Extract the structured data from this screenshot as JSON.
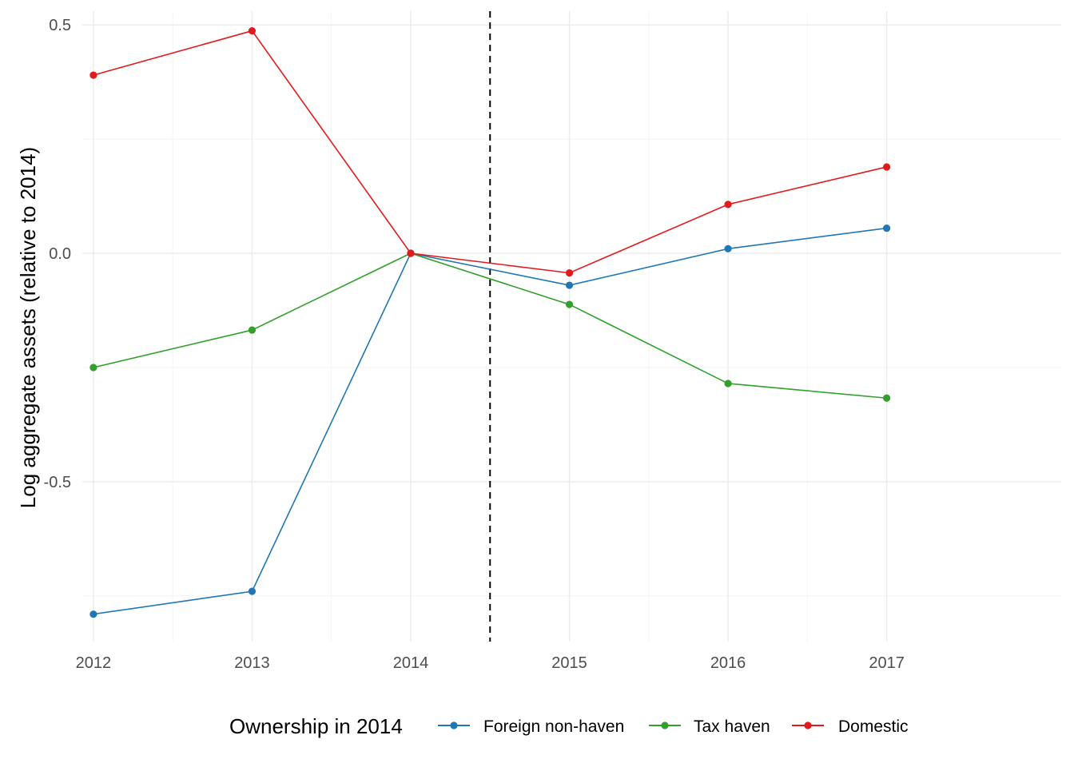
{
  "chart_data": {
    "type": "line",
    "title": "",
    "xlabel": "",
    "ylabel": "Log aggregate assets (relative to 2014)",
    "x": [
      2012,
      2013,
      2014,
      2015,
      2016,
      2017
    ],
    "x_tick_labels": [
      "2012",
      "2013",
      "2014",
      "2015",
      "2016",
      "2017"
    ],
    "xlim": [
      2011.93,
      2018.1
    ],
    "ylim": [
      -0.85,
      0.53
    ],
    "y_ticks": [
      0.5,
      0.0,
      -0.5
    ],
    "y_tick_labels": [
      "0.5",
      "0.0",
      "-0.5"
    ],
    "grid": true,
    "reference_line": {
      "x": 2014.5,
      "style": "dashed",
      "color": "#000000"
    },
    "legend": {
      "title": "Ownership in 2014",
      "position": "bottom"
    },
    "series": [
      {
        "name": "Foreign non-haven",
        "color": "#1f78b4",
        "values": [
          -0.79,
          -0.74,
          0.0,
          -0.07,
          0.01,
          0.055
        ]
      },
      {
        "name": "Tax haven",
        "color": "#33a02c",
        "values": [
          -0.25,
          -0.168,
          0.0,
          -0.112,
          -0.285,
          -0.317
        ]
      },
      {
        "name": "Domestic",
        "color": "#e31a1c",
        "values": [
          0.39,
          0.487,
          0.0,
          -0.043,
          0.107,
          0.189
        ]
      }
    ]
  }
}
